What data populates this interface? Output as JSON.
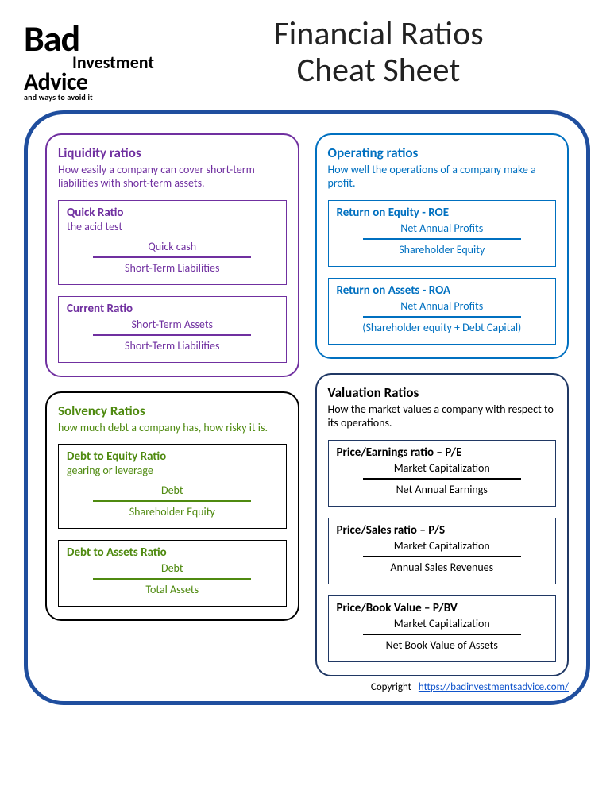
{
  "logo": {
    "line1": "Bad",
    "line2": "Investment",
    "line3": "Advice",
    "line4": "and ways to avoid it"
  },
  "title_line1": "Financial Ratios",
  "title_line2": "Cheat Sheet",
  "frame_border_color": "#1f4e9e",
  "sections": {
    "liquidity": {
      "color": "#7030a0",
      "title": "Liquidity ratios",
      "desc": "How easily a company can cover short-term liabilities with short-term assets.",
      "ratios": [
        {
          "name": "Quick Ratio",
          "sub": "the acid test",
          "num": "Quick cash",
          "den": "Short-Term Liabilities"
        },
        {
          "name": "Current Ratio",
          "sub": "",
          "num": "Short-Term Assets",
          "den": "Short-Term Liabilities"
        }
      ]
    },
    "solvency": {
      "color": "#4f8a10",
      "border_color": "#000000",
      "title": "Solvency Ratios",
      "desc": "how much debt a company has, how risky it is.",
      "ratios": [
        {
          "name": "Debt to Equity Ratio",
          "sub": "gearing or leverage",
          "num": "Debt",
          "den": "Shareholder Equity"
        },
        {
          "name": "Debt to Assets Ratio",
          "sub": "",
          "num": "Debt",
          "den": "Total Assets"
        }
      ]
    },
    "operating": {
      "color": "#0070c0",
      "title": "Operating ratios",
      "desc": "How well the operations of a company make a profit.",
      "ratios": [
        {
          "name": "Return on Equity - ROE",
          "sub": "",
          "num": "Net Annual Profits",
          "den": "Shareholder Equity"
        },
        {
          "name": "Return on Assets - ROA",
          "sub": "",
          "num": "Net Annual Profits",
          "den": "(Shareholder equity + Debt Capital)"
        }
      ]
    },
    "valuation": {
      "color": "#000000",
      "border_color": "#203864",
      "title": "Valuation Ratios",
      "desc": "How the market values a company with respect to its operations.",
      "ratios": [
        {
          "name": "Price/Earnings ratio – P/E",
          "sub": "",
          "num": "Market Capitalization",
          "den": "Net Annual Earnings"
        },
        {
          "name": "Price/Sales ratio – P/S",
          "sub": "",
          "num": "Market Capitalization",
          "den": "Annual Sales Revenues"
        },
        {
          "name": "Price/Book Value – P/BV",
          "sub": "",
          "num": "Market Capitalization",
          "den": "Net Book Value of Assets"
        }
      ]
    }
  },
  "copyright_label": "Copyright",
  "copyright_url_text": "https://badinvestmentsadvice.com/"
}
